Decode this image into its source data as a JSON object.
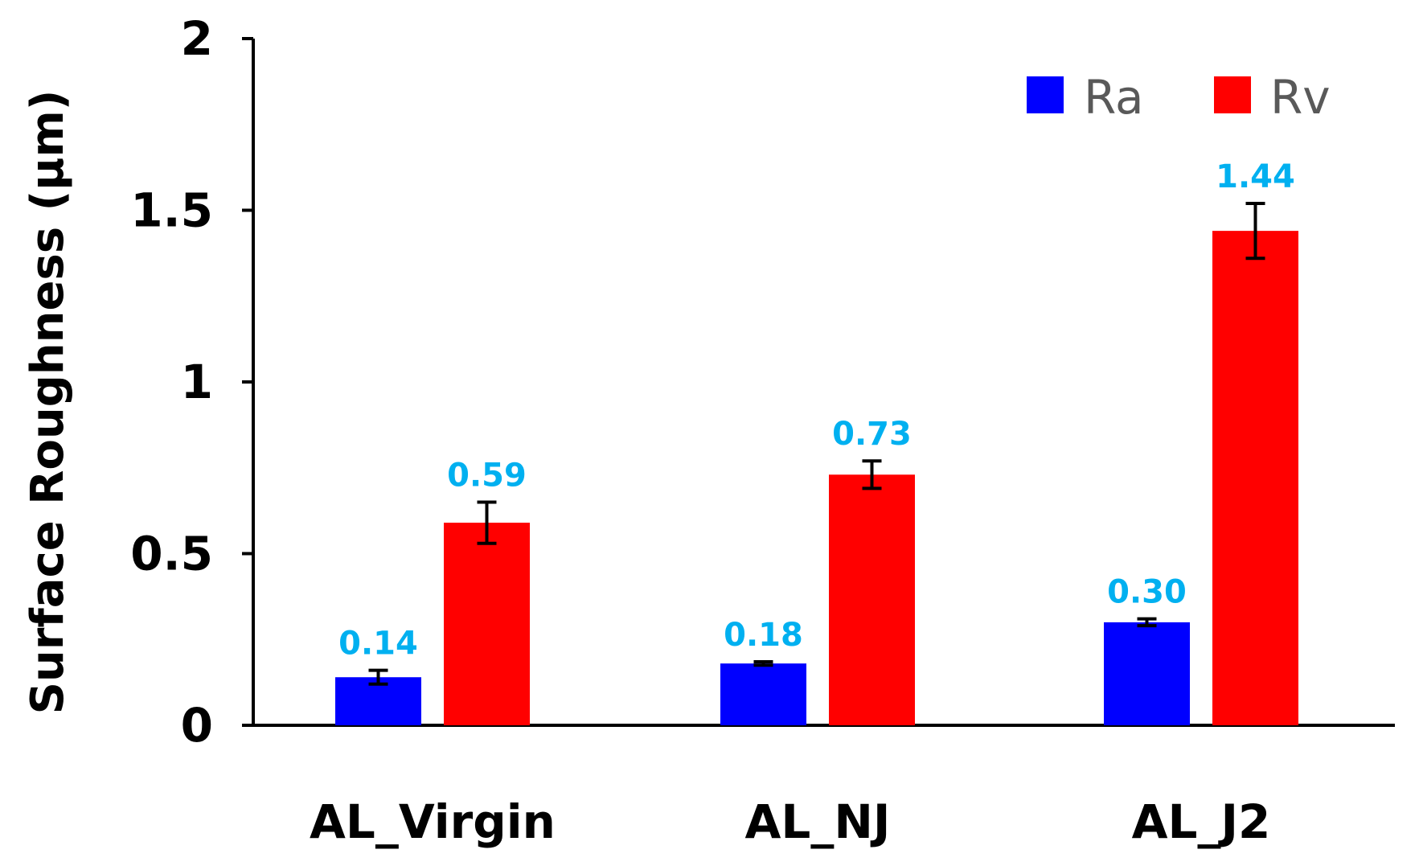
{
  "chart_data": {
    "type": "bar",
    "title": "",
    "xlabel": "",
    "ylabel": "Surface Roughness (μm)",
    "ylim": [
      0,
      2
    ],
    "yticks": [
      0,
      0.5,
      1,
      1.5,
      2
    ],
    "ytick_labels": [
      "0",
      "0.5",
      "1",
      "1.5",
      "2"
    ],
    "categories": [
      "AL_Virgin",
      "AL_NJ",
      "AL_J2"
    ],
    "series": [
      {
        "name": "Ra",
        "color": "#0000ff",
        "values": [
          0.14,
          0.18,
          0.3
        ],
        "errors": [
          0.02,
          0.005,
          0.01
        ],
        "labels": [
          "0.14",
          "0.18",
          "0.30"
        ]
      },
      {
        "name": "Rv",
        "color": "#ff0000",
        "values": [
          0.59,
          0.73,
          1.44
        ],
        "errors": [
          0.06,
          0.04,
          0.08
        ],
        "labels": [
          "0.59",
          "0.73",
          "1.44"
        ]
      }
    ],
    "data_label_color": "#00b0f0",
    "legend": {
      "position": "top-right",
      "entries": [
        "Ra",
        "Rv"
      ]
    },
    "grid": false
  }
}
